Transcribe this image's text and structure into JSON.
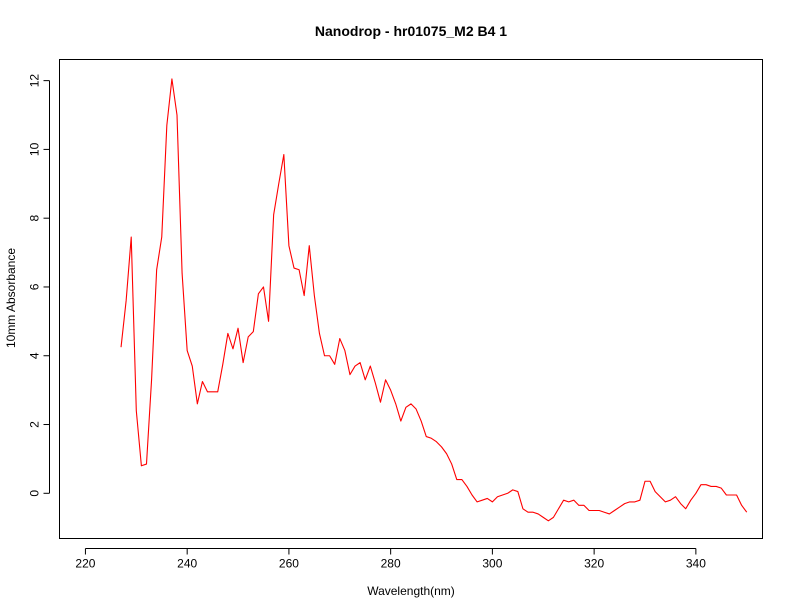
{
  "chart_data": {
    "type": "line",
    "title": "Nanodrop - hr01075_M2 B4 1",
    "xlabel": "Wavelength(nm)",
    "ylabel": "10mm Absorbance",
    "xlim": [
      215,
      353
    ],
    "ylim": [
      -1.3,
      12.6
    ],
    "x_ticks": [
      220,
      240,
      260,
      280,
      300,
      320,
      340
    ],
    "y_ticks": [
      0,
      2,
      4,
      6,
      8,
      10,
      12
    ],
    "grid": false,
    "legend": "none",
    "series": [
      {
        "color": "#ff0000",
        "x": [
          227,
          228,
          229,
          230,
          231,
          232,
          233,
          234,
          235,
          236,
          237,
          238,
          239,
          240,
          241,
          242,
          243,
          244,
          245,
          246,
          247,
          248,
          249,
          250,
          251,
          252,
          253,
          254,
          255,
          256,
          257,
          258,
          259,
          260,
          261,
          262,
          263,
          264,
          265,
          266,
          267,
          268,
          269,
          270,
          271,
          272,
          273,
          274,
          275,
          276,
          277,
          278,
          279,
          280,
          281,
          282,
          283,
          284,
          285,
          286,
          287,
          288,
          289,
          290,
          291,
          292,
          293,
          294,
          295,
          296,
          297,
          298,
          299,
          300,
          301,
          302,
          303,
          304,
          305,
          306,
          307,
          308,
          309,
          310,
          311,
          312,
          313,
          314,
          315,
          316,
          317,
          318,
          319,
          320,
          321,
          322,
          323,
          324,
          325,
          326,
          327,
          328,
          329,
          330,
          331,
          332,
          333,
          334,
          335,
          336,
          337,
          338,
          339,
          340,
          341,
          342,
          343,
          344,
          345,
          346,
          347,
          348,
          349,
          350
        ],
        "y": [
          4.25,
          5.6,
          7.45,
          2.4,
          0.8,
          0.85,
          3.3,
          6.5,
          7.45,
          10.7,
          12.05,
          11.0,
          6.4,
          4.15,
          3.7,
          2.6,
          3.25,
          2.95,
          2.95,
          2.95,
          3.75,
          4.65,
          4.2,
          4.8,
          3.8,
          4.55,
          4.7,
          5.8,
          6.0,
          5.0,
          8.1,
          9.0,
          9.85,
          7.2,
          6.55,
          6.5,
          5.75,
          7.2,
          5.75,
          4.65,
          4.0,
          4.0,
          3.75,
          4.5,
          4.15,
          3.45,
          3.7,
          3.8,
          3.3,
          3.7,
          3.2,
          2.65,
          3.3,
          3.0,
          2.6,
          2.1,
          2.5,
          2.6,
          2.45,
          2.1,
          1.65,
          1.6,
          1.5,
          1.35,
          1.15,
          0.85,
          0.4,
          0.4,
          0.2,
          -0.05,
          -0.25,
          -0.2,
          -0.15,
          -0.25,
          -0.1,
          -0.05,
          0.0,
          0.1,
          0.05,
          -0.45,
          -0.55,
          -0.55,
          -0.6,
          -0.7,
          -0.8,
          -0.7,
          -0.45,
          -0.2,
          -0.25,
          -0.2,
          -0.35,
          -0.35,
          -0.5,
          -0.5,
          -0.5,
          -0.55,
          -0.6,
          -0.5,
          -0.4,
          -0.3,
          -0.25,
          -0.25,
          -0.2,
          0.35,
          0.35,
          0.05,
          -0.1,
          -0.25,
          -0.2,
          -0.1,
          -0.3,
          -0.45,
          -0.2,
          0.0,
          0.25,
          0.25,
          0.2,
          0.2,
          0.15,
          -0.05,
          -0.05,
          -0.05,
          -0.35,
          -0.55
        ]
      }
    ]
  }
}
